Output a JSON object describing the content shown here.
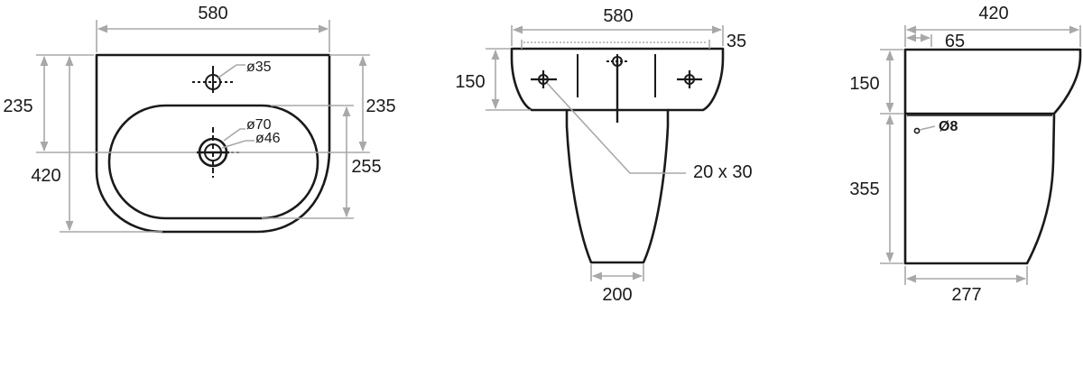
{
  "top_view": {
    "width": "580",
    "depth": "420",
    "tap_to_front": "235",
    "tap_to_front_right": "235",
    "bowl_depth": "255",
    "tap_hole": "ø35",
    "waste_outer": "ø70",
    "waste_inner": "ø46"
  },
  "front_view": {
    "width": "580",
    "rim_thickness": "35",
    "basin_height": "150",
    "fixing_slot": "20 x 30",
    "pedestal_base": "200"
  },
  "side_view": {
    "depth": "420",
    "rear_offset": "65",
    "basin_height": "150",
    "pedestal_height": "355",
    "pedestal_depth": "277",
    "overflow_hole": "Ø8"
  }
}
